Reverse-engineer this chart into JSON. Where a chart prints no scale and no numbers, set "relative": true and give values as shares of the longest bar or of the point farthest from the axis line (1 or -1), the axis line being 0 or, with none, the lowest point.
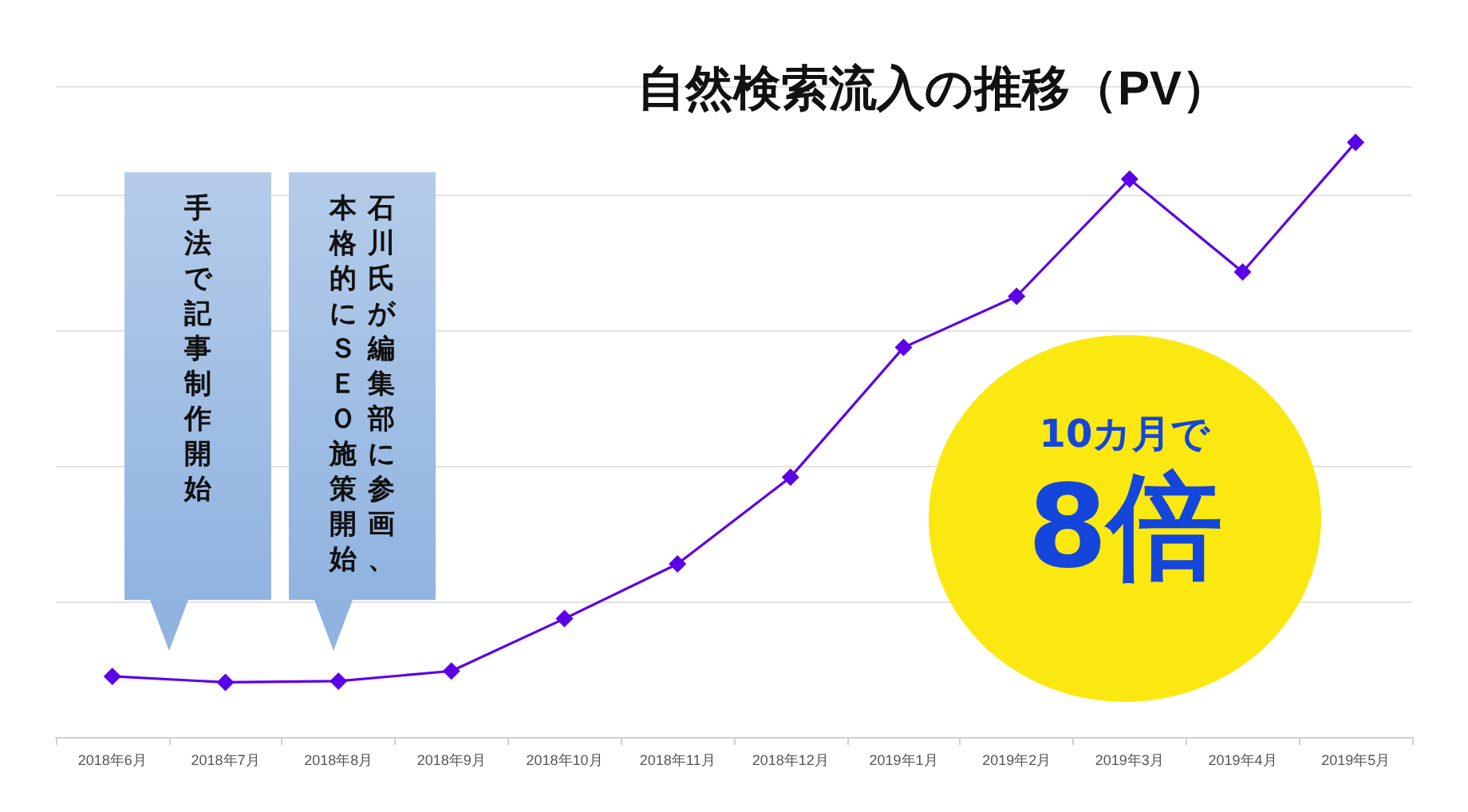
{
  "chart_data": {
    "type": "line",
    "title": "自然検索流入の推移（PV）",
    "categories": [
      "2018年6月",
      "2018年7月",
      "2018年8月",
      "2018年9月",
      "2018年10月",
      "2018年11月",
      "2018年12月",
      "2019年1月",
      "2019年2月",
      "2019年3月",
      "2019年4月",
      "2019年5月"
    ],
    "series": [
      {
        "color": "#5b00e6",
        "values": [
          0.102,
          0.092,
          0.094,
          0.111,
          0.199,
          0.291,
          0.437,
          0.655,
          0.741,
          0.938,
          0.782,
          1
        ]
      }
    ],
    "relative": true,
    "grid": "y",
    "marker": "diamond",
    "line_style": "solid",
    "annotations": [
      "手法で記事制作開始",
      "石川氏が編集部に参画、",
      "本格的にＳＥＯ施策開始",
      "10カ月で",
      "8倍"
    ]
  }
}
